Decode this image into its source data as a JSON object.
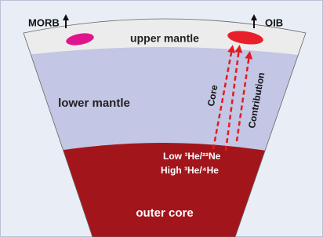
{
  "labels": {
    "morb": "MORB",
    "oib": "OIB",
    "upper_mantle": "upper mantle",
    "lower_mantle": "lower mantle",
    "core_arrow": "Core",
    "contribution_arrow": "Contribution",
    "ratio_low": "Low ³He/²²Ne",
    "ratio_high": "High ³He/⁴He",
    "outer_core": "outer core"
  }
}
